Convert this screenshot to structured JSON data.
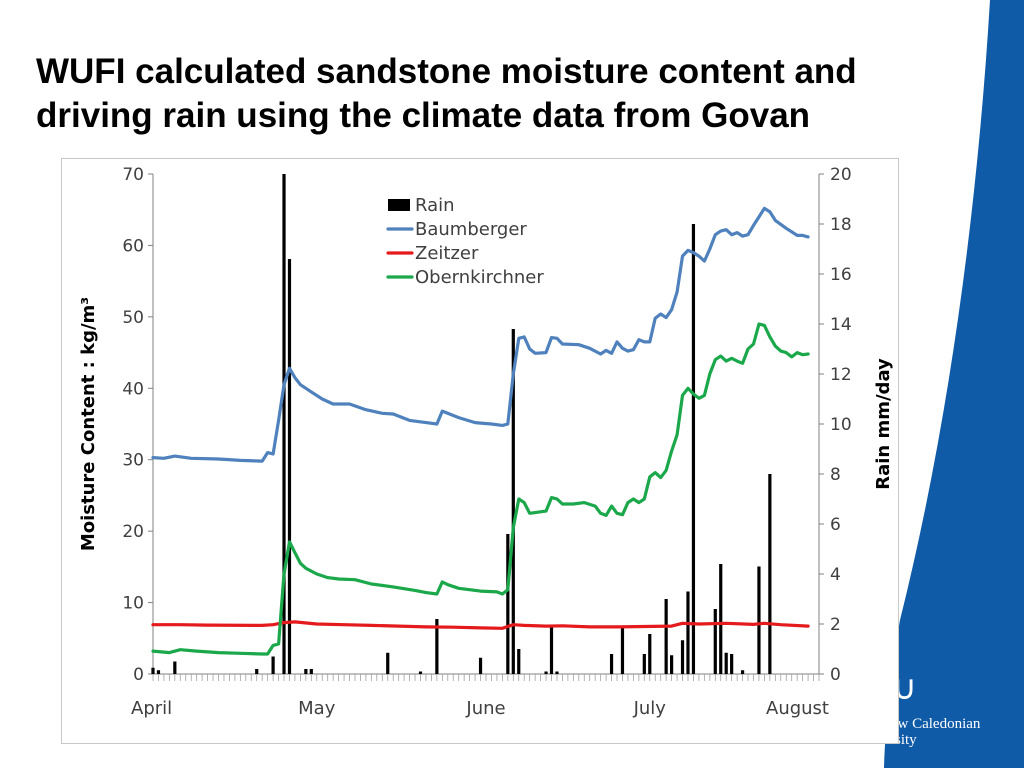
{
  "slide": {
    "title_line1": "WUFI calculated sandstone moisture content and",
    "title_line2": "driving rain using the climate data from Govan",
    "accent_color": "#0f5ba8",
    "logo_text_line1": "ow Caledonian",
    "logo_text_line2": "rsity"
  },
  "chart_data": {
    "type": "line",
    "title": "",
    "xlabel": "",
    "ylabel": "Moisture Content : kg/m³",
    "y2label": "Rain mm/day",
    "ylim": [
      0,
      70
    ],
    "y2lim": [
      0,
      20
    ],
    "yticks": [
      0,
      10,
      20,
      30,
      40,
      50,
      60,
      70
    ],
    "y2ticks": [
      0,
      2,
      4,
      6,
      8,
      10,
      12,
      14,
      16,
      18,
      20
    ],
    "x_range_days": [
      0,
      122
    ],
    "x_axis_start": "April",
    "month_labels": [
      {
        "label": "April",
        "day": 0
      },
      {
        "label": "May",
        "day": 30
      },
      {
        "label": "June",
        "day": 61
      },
      {
        "label": "July",
        "day": 91
      },
      {
        "label": "August",
        "day": 122
      }
    ],
    "grid": false,
    "legend_position": "top-center",
    "legend": [
      {
        "name": "Rain",
        "kind": "bar",
        "color": "#000000"
      },
      {
        "name": "Baumberger",
        "kind": "line",
        "color": "#4f81bd"
      },
      {
        "name": "Zeitzer",
        "kind": "line",
        "color": "#e41a1c"
      },
      {
        "name": "Obernkirchner",
        "kind": "line",
        "color": "#1aa84a"
      }
    ],
    "rain": [
      {
        "day": 0,
        "value": 0.25
      },
      {
        "day": 1,
        "value": 0.15
      },
      {
        "day": 4,
        "value": 0.5
      },
      {
        "day": 19,
        "value": 0.2
      },
      {
        "day": 22,
        "value": 0.7
      },
      {
        "day": 24,
        "value": 20.0
      },
      {
        "day": 25,
        "value": 16.6
      },
      {
        "day": 28,
        "value": 0.2
      },
      {
        "day": 29,
        "value": 0.2
      },
      {
        "day": 43,
        "value": 0.85
      },
      {
        "day": 49,
        "value": 0.1
      },
      {
        "day": 52,
        "value": 2.2
      },
      {
        "day": 60,
        "value": 0.65
      },
      {
        "day": 65,
        "value": 5.6
      },
      {
        "day": 66,
        "value": 13.8
      },
      {
        "day": 67,
        "value": 1.0
      },
      {
        "day": 72,
        "value": 0.1
      },
      {
        "day": 73,
        "value": 1.9
      },
      {
        "day": 74,
        "value": 0.1
      },
      {
        "day": 84,
        "value": 0.8
      },
      {
        "day": 86,
        "value": 1.9
      },
      {
        "day": 90,
        "value": 0.8
      },
      {
        "day": 91,
        "value": 1.6
      },
      {
        "day": 94,
        "value": 3.0
      },
      {
        "day": 95,
        "value": 0.75
      },
      {
        "day": 97,
        "value": 1.35
      },
      {
        "day": 98,
        "value": 3.3
      },
      {
        "day": 99,
        "value": 18.0
      },
      {
        "day": 103,
        "value": 2.6
      },
      {
        "day": 104,
        "value": 4.4
      },
      {
        "day": 105,
        "value": 0.85
      },
      {
        "day": 106,
        "value": 0.8
      },
      {
        "day": 108,
        "value": 0.15
      },
      {
        "day": 111,
        "value": 4.3
      },
      {
        "day": 113,
        "value": 8.0
      }
    ],
    "series": [
      {
        "name": "Baumberger",
        "color": "#4f81bd",
        "points": [
          [
            0,
            30.3
          ],
          [
            2,
            30.2
          ],
          [
            4,
            30.5
          ],
          [
            7,
            30.2
          ],
          [
            12,
            30.1
          ],
          [
            16,
            29.9
          ],
          [
            20,
            29.8
          ],
          [
            21,
            31.0
          ],
          [
            22,
            30.8
          ],
          [
            23,
            35.5
          ],
          [
            24,
            40.5
          ],
          [
            25,
            42.8
          ],
          [
            26,
            41.5
          ],
          [
            27,
            40.5
          ],
          [
            29,
            39.5
          ],
          [
            31,
            38.5
          ],
          [
            33,
            37.8
          ],
          [
            36,
            37.8
          ],
          [
            39,
            37.0
          ],
          [
            42,
            36.5
          ],
          [
            44,
            36.4
          ],
          [
            47,
            35.5
          ],
          [
            50,
            35.2
          ],
          [
            52,
            35.0
          ],
          [
            53,
            36.8
          ],
          [
            56,
            35.9
          ],
          [
            59,
            35.2
          ],
          [
            62,
            35.0
          ],
          [
            64,
            34.8
          ],
          [
            65,
            35.0
          ],
          [
            66,
            42.0
          ],
          [
            67,
            47.0
          ],
          [
            68,
            47.2
          ],
          [
            69,
            45.5
          ],
          [
            70,
            44.9
          ],
          [
            72,
            45.0
          ],
          [
            73,
            47.1
          ],
          [
            74,
            47.0
          ],
          [
            75,
            46.2
          ],
          [
            78,
            46.1
          ],
          [
            80,
            45.6
          ],
          [
            82,
            44.8
          ],
          [
            83,
            45.3
          ],
          [
            84,
            44.9
          ],
          [
            85,
            46.5
          ],
          [
            86,
            45.6
          ],
          [
            87,
            45.2
          ],
          [
            88,
            45.4
          ],
          [
            89,
            46.8
          ],
          [
            90,
            46.5
          ],
          [
            91,
            46.5
          ],
          [
            92,
            49.8
          ],
          [
            93,
            50.4
          ],
          [
            94,
            49.9
          ],
          [
            95,
            51.0
          ],
          [
            96,
            53.5
          ],
          [
            97,
            58.5
          ],
          [
            98,
            59.3
          ],
          [
            99,
            59.0
          ],
          [
            100,
            58.5
          ],
          [
            101,
            57.8
          ],
          [
            102,
            59.5
          ],
          [
            103,
            61.5
          ],
          [
            104,
            62.0
          ],
          [
            105,
            62.2
          ],
          [
            106,
            61.5
          ],
          [
            107,
            61.8
          ],
          [
            108,
            61.3
          ],
          [
            109,
            61.5
          ],
          [
            110,
            62.8
          ],
          [
            111,
            64.0
          ],
          [
            112,
            65.2
          ],
          [
            113,
            64.7
          ],
          [
            114,
            63.5
          ],
          [
            116,
            62.4
          ],
          [
            118,
            61.4
          ],
          [
            119,
            61.4
          ],
          [
            120,
            61.2
          ]
        ]
      },
      {
        "name": "Zeitzer",
        "color": "#e41a1c",
        "points": [
          [
            0,
            6.9
          ],
          [
            5,
            6.9
          ],
          [
            10,
            6.85
          ],
          [
            20,
            6.8
          ],
          [
            22,
            6.9
          ],
          [
            24,
            7.2
          ],
          [
            26,
            7.3
          ],
          [
            30,
            7.0
          ],
          [
            35,
            6.9
          ],
          [
            40,
            6.8
          ],
          [
            45,
            6.7
          ],
          [
            50,
            6.6
          ],
          [
            55,
            6.55
          ],
          [
            60,
            6.45
          ],
          [
            64,
            6.4
          ],
          [
            66,
            6.9
          ],
          [
            68,
            6.8
          ],
          [
            72,
            6.7
          ],
          [
            75,
            6.75
          ],
          [
            80,
            6.6
          ],
          [
            85,
            6.6
          ],
          [
            90,
            6.65
          ],
          [
            95,
            6.7
          ],
          [
            97,
            7.1
          ],
          [
            100,
            7.0
          ],
          [
            105,
            7.1
          ],
          [
            110,
            6.95
          ],
          [
            112,
            7.1
          ],
          [
            115,
            6.9
          ],
          [
            120,
            6.7
          ]
        ]
      },
      {
        "name": "Obernkirchner",
        "color": "#1aa84a",
        "points": [
          [
            0,
            3.2
          ],
          [
            3,
            3.0
          ],
          [
            5,
            3.4
          ],
          [
            8,
            3.2
          ],
          [
            12,
            3.0
          ],
          [
            16,
            2.9
          ],
          [
            20,
            2.8
          ],
          [
            21,
            2.8
          ],
          [
            22,
            4.0
          ],
          [
            23,
            4.2
          ],
          [
            24,
            14.0
          ],
          [
            25,
            18.5
          ],
          [
            26,
            17.0
          ],
          [
            27,
            15.5
          ],
          [
            28,
            14.8
          ],
          [
            30,
            14.0
          ],
          [
            32,
            13.5
          ],
          [
            34,
            13.3
          ],
          [
            37,
            13.2
          ],
          [
            40,
            12.6
          ],
          [
            44,
            12.2
          ],
          [
            48,
            11.7
          ],
          [
            50,
            11.4
          ],
          [
            52,
            11.2
          ],
          [
            53,
            12.9
          ],
          [
            54,
            12.5
          ],
          [
            56,
            12.0
          ],
          [
            60,
            11.6
          ],
          [
            63,
            11.5
          ],
          [
            64,
            11.2
          ],
          [
            65,
            11.8
          ],
          [
            66,
            20.5
          ],
          [
            67,
            24.5
          ],
          [
            68,
            24.0
          ],
          [
            69,
            22.5
          ],
          [
            70,
            22.6
          ],
          [
            72,
            22.8
          ],
          [
            73,
            24.7
          ],
          [
            74,
            24.5
          ],
          [
            75,
            23.8
          ],
          [
            77,
            23.8
          ],
          [
            79,
            24.0
          ],
          [
            81,
            23.5
          ],
          [
            82,
            22.5
          ],
          [
            83,
            22.2
          ],
          [
            84,
            23.5
          ],
          [
            85,
            22.5
          ],
          [
            86,
            22.3
          ],
          [
            87,
            24.0
          ],
          [
            88,
            24.5
          ],
          [
            89,
            24.0
          ],
          [
            90,
            24.5
          ],
          [
            91,
            27.6
          ],
          [
            92,
            28.2
          ],
          [
            93,
            27.5
          ],
          [
            94,
            28.5
          ],
          [
            95,
            31.2
          ],
          [
            96,
            33.5
          ],
          [
            97,
            39.0
          ],
          [
            98,
            40.0
          ],
          [
            99,
            39.2
          ],
          [
            100,
            38.6
          ],
          [
            101,
            39.0
          ],
          [
            102,
            42.0
          ],
          [
            103,
            44.0
          ],
          [
            104,
            44.5
          ],
          [
            105,
            43.8
          ],
          [
            106,
            44.2
          ],
          [
            107,
            43.8
          ],
          [
            108,
            43.5
          ],
          [
            109,
            45.5
          ],
          [
            110,
            46.2
          ],
          [
            111,
            49.0
          ],
          [
            112,
            48.8
          ],
          [
            113,
            47.2
          ],
          [
            114,
            45.9
          ],
          [
            115,
            45.2
          ],
          [
            116,
            45.0
          ],
          [
            117,
            44.4
          ],
          [
            118,
            45.0
          ],
          [
            119,
            44.7
          ],
          [
            120,
            44.8
          ]
        ]
      }
    ]
  }
}
